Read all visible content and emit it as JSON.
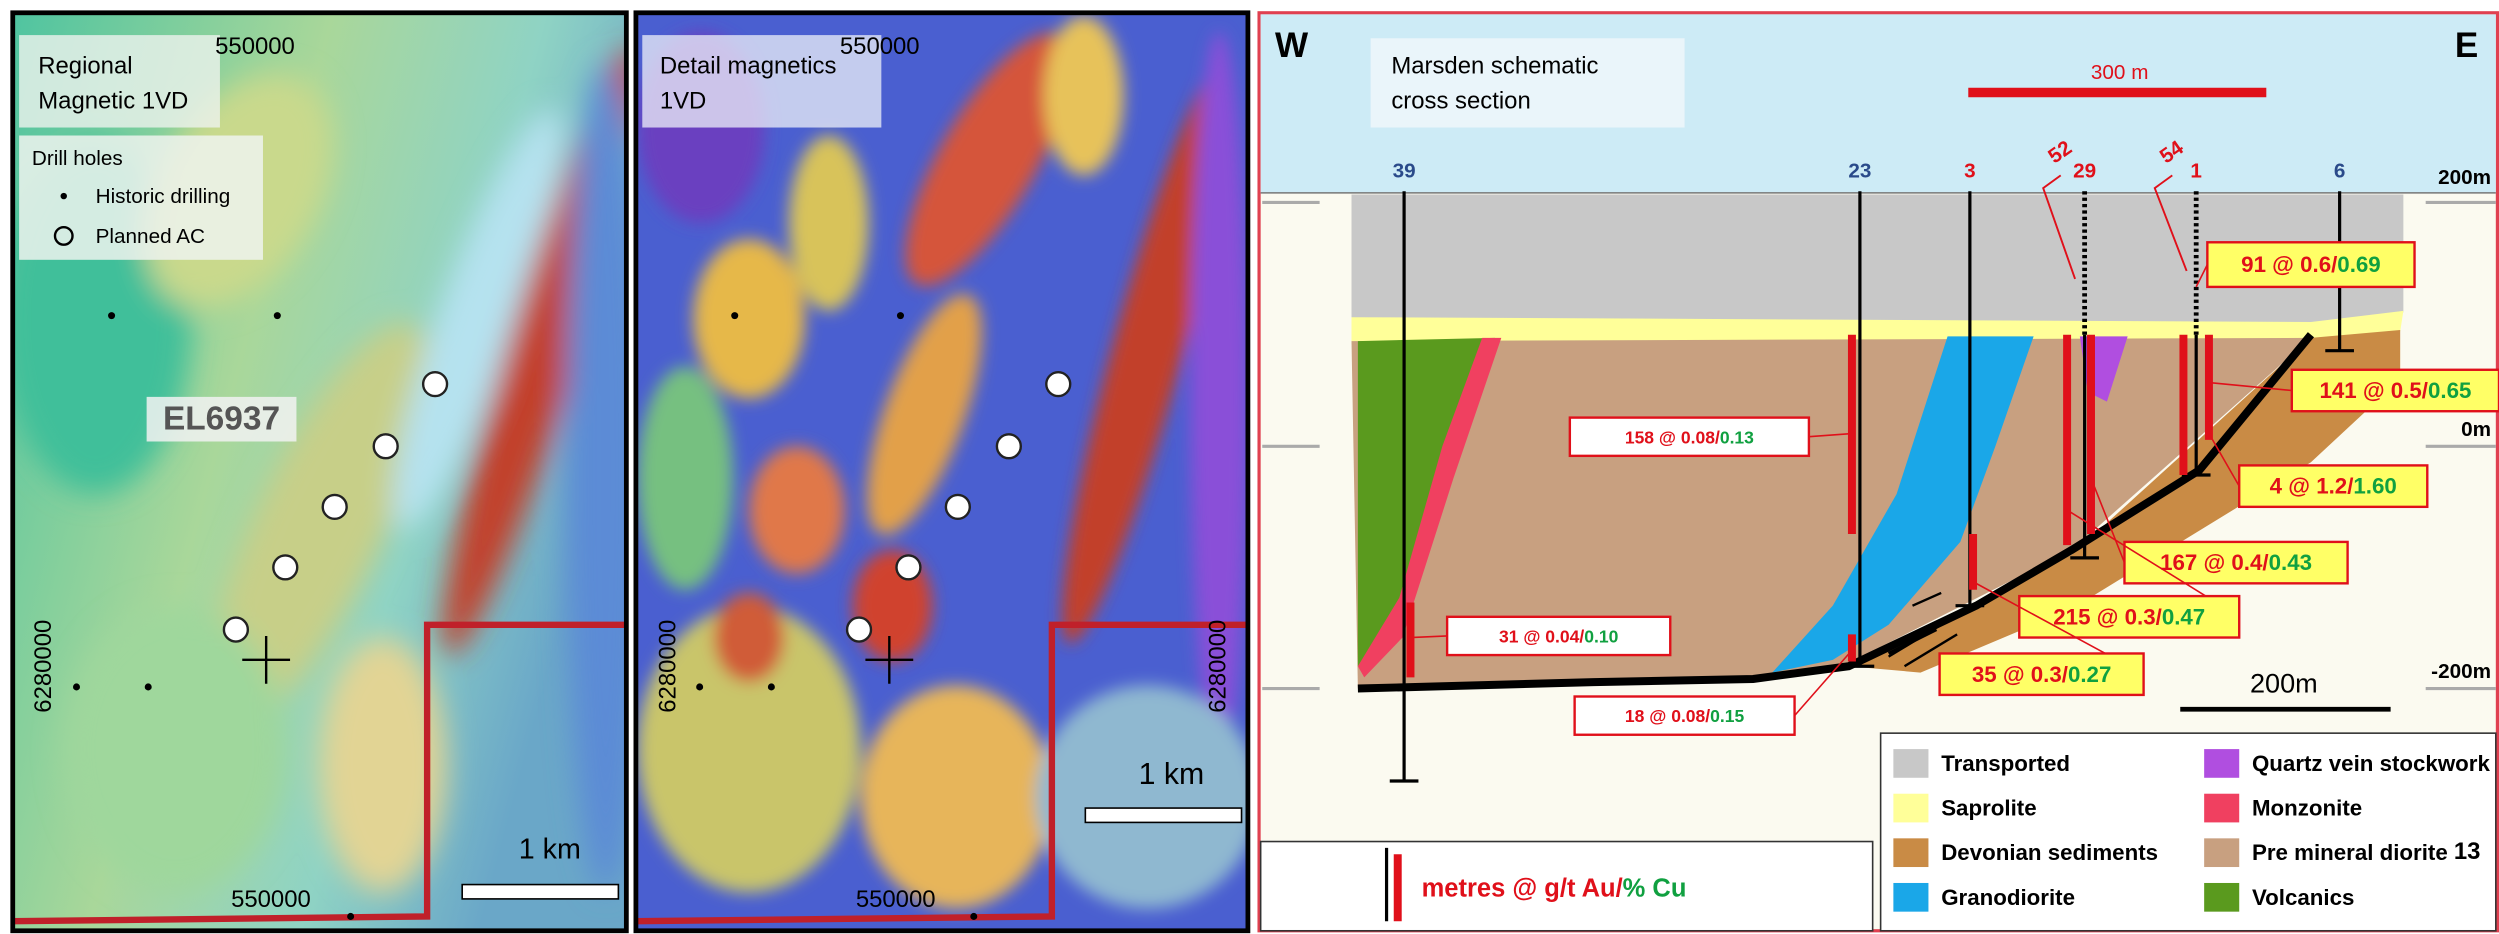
{
  "maps": [
    {
      "title": [
        "Regional",
        "Magnetic 1VD"
      ],
      "legend": {
        "title": "Drill holes",
        "items": [
          "Historic drilling",
          "Planned AC"
        ]
      },
      "tenement": "EL6937",
      "easting_top": "550000",
      "easting_bottom": "550000",
      "northing": "6280000",
      "scale": "1 km"
    },
    {
      "title": [
        "Detail magnetics",
        "1VD"
      ],
      "easting_top": "550000",
      "easting_bottom": "550000",
      "northing": "6280000",
      "scale": "1 km"
    }
  ],
  "section": {
    "west": "W",
    "east": "E",
    "title": [
      "Marsden schematic",
      "cross section"
    ],
    "top_scale": "300 m",
    "holes": [
      "39",
      "23",
      "3",
      "29",
      "1",
      "6"
    ],
    "inclined_holes": [
      "52",
      "54"
    ],
    "elevations": [
      "200m",
      "0m",
      "-200m"
    ],
    "scale": "200m",
    "intercepts": [
      {
        "text": "91 @ 0.6/",
        "cu": "0.69"
      },
      {
        "text": "141 @ 0.5/",
        "cu": "0.65"
      },
      {
        "text": "4 @ 1.2/",
        "cu": "1.60"
      },
      {
        "text": "167 @ 0.4/",
        "cu": "0.43"
      },
      {
        "text": "215 @ 0.3/",
        "cu": "0.47"
      },
      {
        "text": "35 @ 0.3/",
        "cu": "0.27"
      },
      {
        "text": "158 @ 0.08/",
        "cu": "0.13"
      },
      {
        "text": "31 @ 0.04/",
        "cu": "0.10"
      },
      {
        "text": "18 @ 0.08/",
        "cu": "0.15"
      }
    ],
    "legend": [
      "Transported",
      "Saprolite",
      "Devonian sediments",
      "Granodiorite",
      "Quartz vein stockwork",
      "Monzonite",
      "Pre mineral diorite",
      "Volcanics"
    ],
    "key": {
      "text": "metres @ g/t Au/",
      "cu": "% Cu"
    }
  },
  "page_number": "13"
}
